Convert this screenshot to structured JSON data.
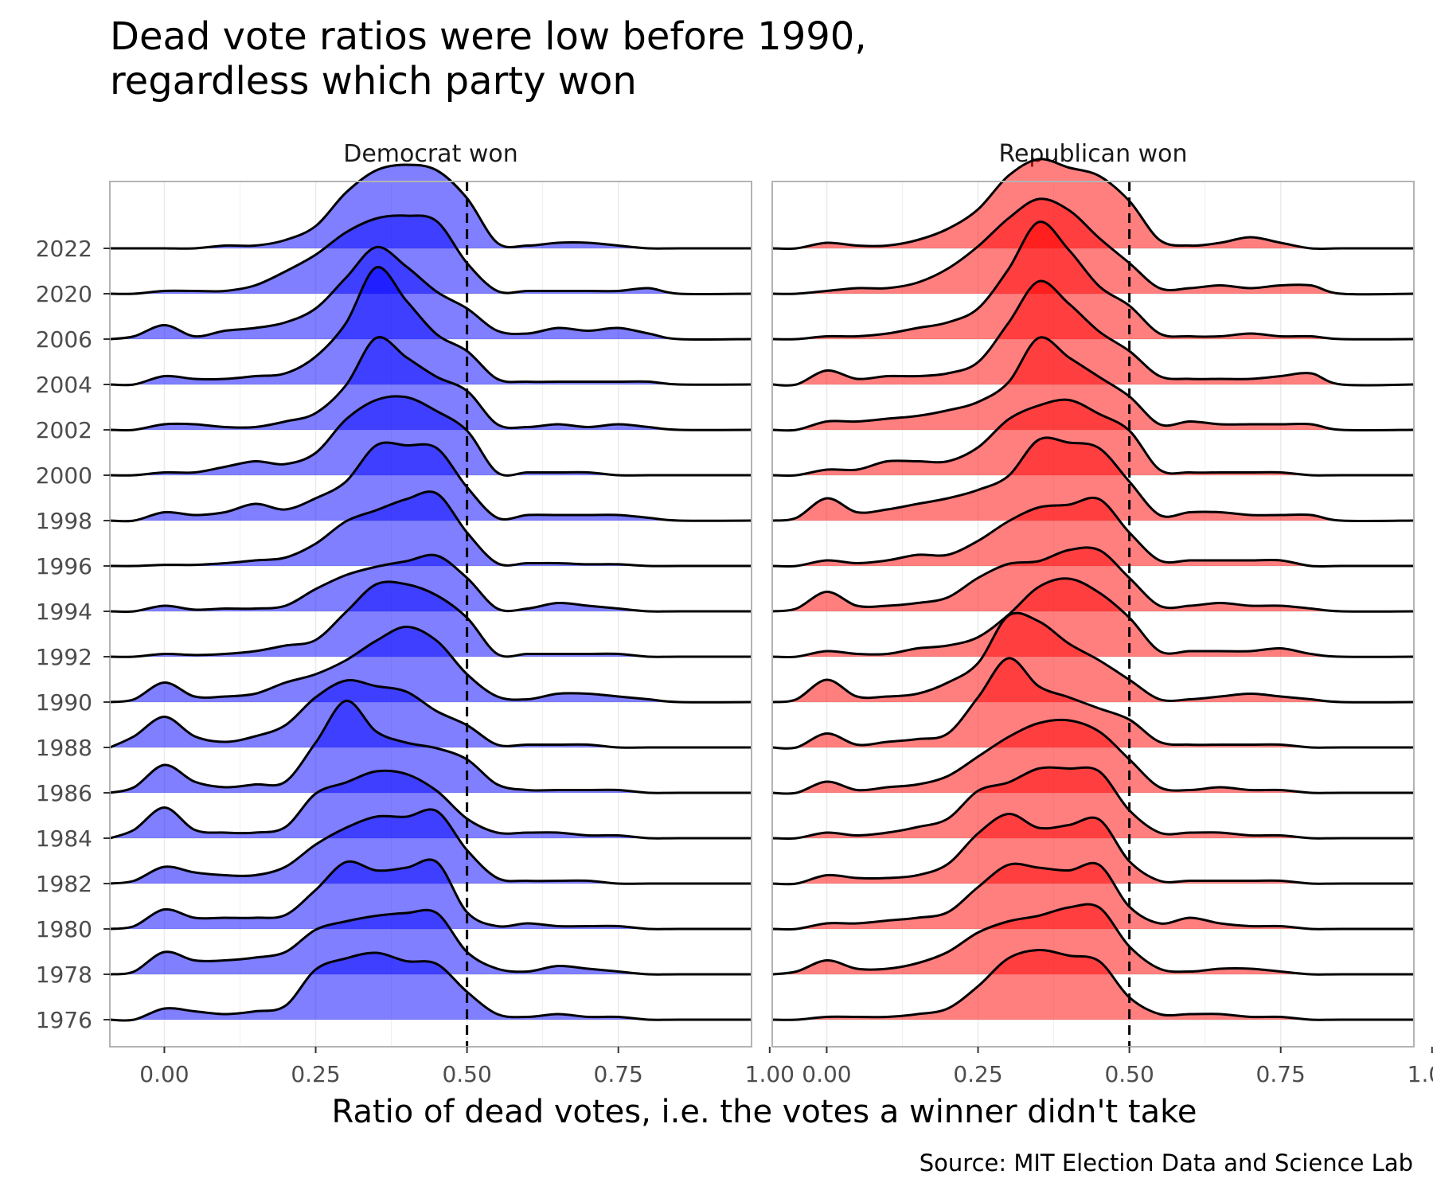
{
  "chart_data": {
    "type": "ridgeline-density",
    "title": "Dead vote ratios were low before 1990,\nregardless which party won",
    "xlabel": "Ratio of dead votes, i.e. the votes a winner didn't take",
    "ylabel": "",
    "caption": "Source: MIT Election Data and Science Lab",
    "xlim": [
      -0.09,
      0.97
    ],
    "x_ticks": [
      0.0,
      0.25,
      0.5,
      0.75,
      1.0
    ],
    "x_tick_labels": [
      "0.00",
      "0.25",
      "0.50",
      "0.75",
      "1.00"
    ],
    "reference_line": {
      "x": 0.5,
      "style": "dashed"
    },
    "years": [
      "1976",
      "1978",
      "1980",
      "1982",
      "1984",
      "1986",
      "1988",
      "1990",
      "1992",
      "1994",
      "1996",
      "1998",
      "2000",
      "2002",
      "2004",
      "2006",
      "2020",
      "2022"
    ],
    "x": [
      -0.05,
      0.0,
      0.05,
      0.1,
      0.15,
      0.2,
      0.25,
      0.3,
      0.35,
      0.4,
      0.45,
      0.5,
      0.55,
      0.6,
      0.65,
      0.7,
      0.75,
      0.8,
      0.85
    ],
    "panels": [
      {
        "name": "Democrat won",
        "color": "#0000FF",
        "densities": {
          "1976": [
            0.0,
            0.2,
            0.15,
            0.1,
            0.15,
            0.25,
            0.9,
            1.1,
            1.2,
            1.05,
            1.0,
            0.5,
            0.1,
            0.05,
            0.1,
            0.05,
            0.05,
            0.0,
            0.0
          ],
          "1978": [
            0.05,
            0.4,
            0.25,
            0.25,
            0.3,
            0.4,
            0.8,
            0.95,
            1.05,
            1.1,
            1.1,
            0.4,
            0.1,
            0.05,
            0.15,
            0.1,
            0.05,
            0.0,
            0.0
          ],
          "1980": [
            0.05,
            0.35,
            0.2,
            0.2,
            0.2,
            0.25,
            0.7,
            1.2,
            1.05,
            1.1,
            1.2,
            0.3,
            0.05,
            0.1,
            0.05,
            0.05,
            0.05,
            0.0,
            0.0
          ],
          "1982": [
            0.05,
            0.3,
            0.2,
            0.15,
            0.15,
            0.3,
            0.7,
            1.0,
            1.2,
            1.2,
            1.3,
            0.6,
            0.1,
            0.05,
            0.05,
            0.05,
            0.0,
            0.0,
            0.0
          ],
          "1984": [
            0.15,
            0.55,
            0.15,
            0.1,
            0.1,
            0.2,
            0.8,
            1.0,
            1.2,
            1.15,
            0.85,
            0.35,
            0.1,
            0.1,
            0.1,
            0.05,
            0.05,
            0.0,
            0.0
          ],
          "1986": [
            0.1,
            0.5,
            0.2,
            0.1,
            0.15,
            0.2,
            0.9,
            1.65,
            1.1,
            0.9,
            0.8,
            0.6,
            0.15,
            0.05,
            0.05,
            0.05,
            0.05,
            0.0,
            0.0
          ],
          "1988": [
            0.2,
            0.55,
            0.2,
            0.1,
            0.2,
            0.4,
            0.9,
            1.2,
            1.1,
            1.0,
            0.65,
            0.4,
            0.05,
            0.05,
            0.05,
            0.05,
            0.0,
            0.0,
            0.0
          ],
          "1990": [
            0.05,
            0.35,
            0.1,
            0.1,
            0.15,
            0.35,
            0.5,
            0.75,
            1.1,
            1.35,
            1.1,
            0.5,
            0.1,
            0.05,
            0.15,
            0.15,
            0.1,
            0.05,
            0.0
          ],
          "1992": [
            0.0,
            0.05,
            0.03,
            0.05,
            0.1,
            0.2,
            0.3,
            0.8,
            1.3,
            1.3,
            1.1,
            0.7,
            0.05,
            0.05,
            0.05,
            0.05,
            0.05,
            0.0,
            0.0
          ],
          "1994": [
            0.0,
            0.1,
            0.03,
            0.05,
            0.05,
            0.1,
            0.4,
            0.65,
            0.8,
            0.9,
            1.0,
            0.6,
            0.05,
            0.05,
            0.15,
            0.1,
            0.05,
            0.0,
            0.0
          ],
          "1996": [
            0.0,
            0.02,
            0.02,
            0.05,
            0.1,
            0.15,
            0.4,
            0.8,
            1.0,
            1.2,
            1.3,
            0.6,
            0.05,
            0.05,
            0.05,
            0.03,
            0.03,
            0.0,
            0.0
          ],
          "1998": [
            0.0,
            0.15,
            0.1,
            0.15,
            0.3,
            0.2,
            0.4,
            0.7,
            1.35,
            1.35,
            1.3,
            0.6,
            0.05,
            0.1,
            0.1,
            0.1,
            0.1,
            0.05,
            0.0
          ],
          "2000": [
            0.0,
            0.05,
            0.05,
            0.15,
            0.25,
            0.2,
            0.4,
            1.0,
            1.35,
            1.4,
            1.15,
            0.8,
            0.05,
            0.05,
            0.05,
            0.05,
            0.0,
            0.0,
            0.0
          ],
          "2002": [
            0.0,
            0.1,
            0.1,
            0.05,
            0.05,
            0.15,
            0.3,
            0.8,
            1.65,
            1.3,
            0.95,
            0.7,
            0.1,
            0.05,
            0.1,
            0.05,
            0.1,
            0.05,
            0.0
          ],
          "2004": [
            0.0,
            0.15,
            0.1,
            0.1,
            0.15,
            0.2,
            0.5,
            1.1,
            2.1,
            1.5,
            0.9,
            0.6,
            0.1,
            0.05,
            0.05,
            0.05,
            0.05,
            0.05,
            0.0
          ],
          "2006": [
            0.05,
            0.25,
            0.05,
            0.15,
            0.2,
            0.3,
            0.55,
            1.1,
            1.65,
            1.3,
            0.85,
            0.55,
            0.15,
            0.1,
            0.2,
            0.15,
            0.2,
            0.1,
            0.0
          ],
          "2020": [
            0.0,
            0.05,
            0.05,
            0.05,
            0.15,
            0.4,
            0.7,
            1.1,
            1.35,
            1.4,
            1.3,
            0.55,
            0.05,
            0.05,
            0.05,
            0.05,
            0.05,
            0.1,
            0.0
          ],
          "2022": [
            0.0,
            0.0,
            0.0,
            0.05,
            0.05,
            0.15,
            0.4,
            1.0,
            1.4,
            1.5,
            1.4,
            0.9,
            0.1,
            0.05,
            0.1,
            0.1,
            0.05,
            0.0,
            0.0
          ]
        }
      },
      {
        "name": "Republican won",
        "color": "#FF0000",
        "densities": {
          "1976": [
            0.0,
            0.05,
            0.05,
            0.05,
            0.1,
            0.2,
            0.6,
            1.1,
            1.25,
            1.15,
            1.05,
            0.4,
            0.1,
            0.1,
            0.1,
            0.05,
            0.05,
            0.0,
            0.0
          ],
          "1978": [
            0.05,
            0.25,
            0.1,
            0.1,
            0.2,
            0.4,
            0.75,
            0.95,
            1.05,
            1.2,
            1.2,
            0.5,
            0.1,
            0.05,
            0.1,
            0.1,
            0.05,
            0.0,
            0.0
          ],
          "1980": [
            0.0,
            0.1,
            0.1,
            0.15,
            0.2,
            0.3,
            0.75,
            1.15,
            1.1,
            1.05,
            1.15,
            0.4,
            0.1,
            0.2,
            0.1,
            0.05,
            0.05,
            0.0,
            0.0
          ],
          "1982": [
            0.0,
            0.15,
            0.1,
            0.1,
            0.15,
            0.35,
            0.9,
            1.25,
            1.0,
            1.05,
            1.15,
            0.4,
            0.05,
            0.05,
            0.05,
            0.05,
            0.05,
            0.0,
            0.0
          ],
          "1984": [
            0.0,
            0.1,
            0.05,
            0.1,
            0.2,
            0.35,
            0.85,
            1.0,
            1.25,
            1.25,
            1.2,
            0.5,
            0.1,
            0.1,
            0.1,
            0.05,
            0.05,
            0.0,
            0.0
          ],
          "1986": [
            0.0,
            0.2,
            0.05,
            0.1,
            0.15,
            0.3,
            0.65,
            1.0,
            1.25,
            1.3,
            1.1,
            0.6,
            0.1,
            0.05,
            0.1,
            0.05,
            0.05,
            0.0,
            0.0
          ],
          "1988": [
            0.0,
            0.25,
            0.05,
            0.1,
            0.15,
            0.25,
            0.9,
            1.6,
            1.1,
            0.9,
            0.7,
            0.5,
            0.1,
            0.05,
            0.05,
            0.05,
            0.05,
            0.0,
            0.0
          ],
          "1990": [
            0.05,
            0.4,
            0.1,
            0.1,
            0.15,
            0.35,
            0.7,
            1.55,
            1.45,
            1.05,
            0.75,
            0.4,
            0.05,
            0.05,
            0.1,
            0.15,
            0.1,
            0.05,
            0.0
          ],
          "1992": [
            0.0,
            0.1,
            0.05,
            0.05,
            0.15,
            0.2,
            0.35,
            0.75,
            1.25,
            1.4,
            1.15,
            0.7,
            0.1,
            0.1,
            0.1,
            0.1,
            0.15,
            0.05,
            0.0
          ],
          "1994": [
            0.05,
            0.35,
            0.1,
            0.1,
            0.15,
            0.25,
            0.6,
            0.85,
            0.9,
            1.1,
            1.1,
            0.6,
            0.1,
            0.1,
            0.15,
            0.1,
            0.1,
            0.05,
            0.0
          ],
          "1996": [
            0.0,
            0.1,
            0.05,
            0.1,
            0.2,
            0.2,
            0.45,
            0.8,
            1.05,
            1.1,
            1.2,
            0.6,
            0.1,
            0.1,
            0.1,
            0.1,
            0.1,
            0.0,
            0.0
          ],
          "1998": [
            0.05,
            0.4,
            0.15,
            0.2,
            0.3,
            0.4,
            0.55,
            0.8,
            1.45,
            1.4,
            1.3,
            0.7,
            0.1,
            0.15,
            0.15,
            0.1,
            0.1,
            0.1,
            0.0
          ],
          "2000": [
            0.0,
            0.1,
            0.1,
            0.25,
            0.25,
            0.25,
            0.5,
            1.0,
            1.25,
            1.35,
            1.1,
            0.8,
            0.1,
            0.05,
            0.05,
            0.05,
            0.05,
            0.0,
            0.0
          ],
          "2002": [
            0.0,
            0.15,
            0.15,
            0.2,
            0.25,
            0.35,
            0.5,
            0.85,
            1.65,
            1.3,
            0.95,
            0.6,
            0.1,
            0.15,
            0.1,
            0.1,
            0.1,
            0.1,
            0.0
          ],
          "2004": [
            0.0,
            0.25,
            0.1,
            0.15,
            0.15,
            0.2,
            0.4,
            1.1,
            1.85,
            1.45,
            0.95,
            0.6,
            0.15,
            0.1,
            0.1,
            0.1,
            0.15,
            0.2,
            0.0
          ],
          "2006": [
            0.0,
            0.05,
            0.05,
            0.1,
            0.2,
            0.3,
            0.55,
            1.25,
            2.1,
            1.6,
            0.95,
            0.6,
            0.1,
            0.05,
            0.05,
            0.1,
            0.05,
            0.05,
            0.0
          ],
          "2020": [
            0.0,
            0.05,
            0.1,
            0.1,
            0.2,
            0.45,
            0.85,
            1.35,
            1.7,
            1.5,
            1.0,
            0.55,
            0.1,
            0.1,
            0.15,
            0.1,
            0.15,
            0.15,
            0.0
          ],
          "2022": [
            0.0,
            0.1,
            0.05,
            0.05,
            0.15,
            0.35,
            0.7,
            1.3,
            1.6,
            1.45,
            1.3,
            0.85,
            0.15,
            0.05,
            0.1,
            0.2,
            0.1,
            0.0,
            0.0
          ]
        }
      }
    ]
  }
}
